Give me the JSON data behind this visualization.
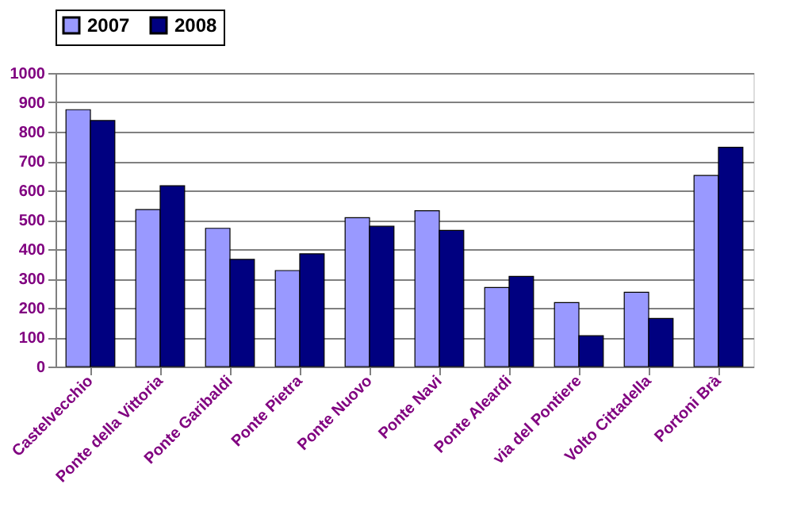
{
  "chart_data": {
    "type": "bar",
    "categories": [
      "Castelvecchio",
      "Ponte della Vittoria",
      "Ponte Garibaldi",
      "Ponte Pietra",
      "Ponte Nuovo",
      "Ponte Navi",
      "Ponte Aleardi",
      "via del Pontiere",
      "Volto Cittadella",
      "Portoni Brà"
    ],
    "series": [
      {
        "name": "2007",
        "color": "#9999ff",
        "values": [
          875,
          535,
          471,
          327,
          507,
          531,
          269,
          218,
          253,
          651
        ]
      },
      {
        "name": "2008",
        "color": "#000080",
        "values": [
          838,
          616,
          365,
          384,
          478,
          464,
          307,
          105,
          164,
          747
        ]
      }
    ],
    "ylim": [
      0,
      1000
    ],
    "yticks": [
      0,
      100,
      200,
      300,
      400,
      500,
      600,
      700,
      800,
      900,
      1000
    ],
    "grid": "y",
    "legend": "top"
  }
}
